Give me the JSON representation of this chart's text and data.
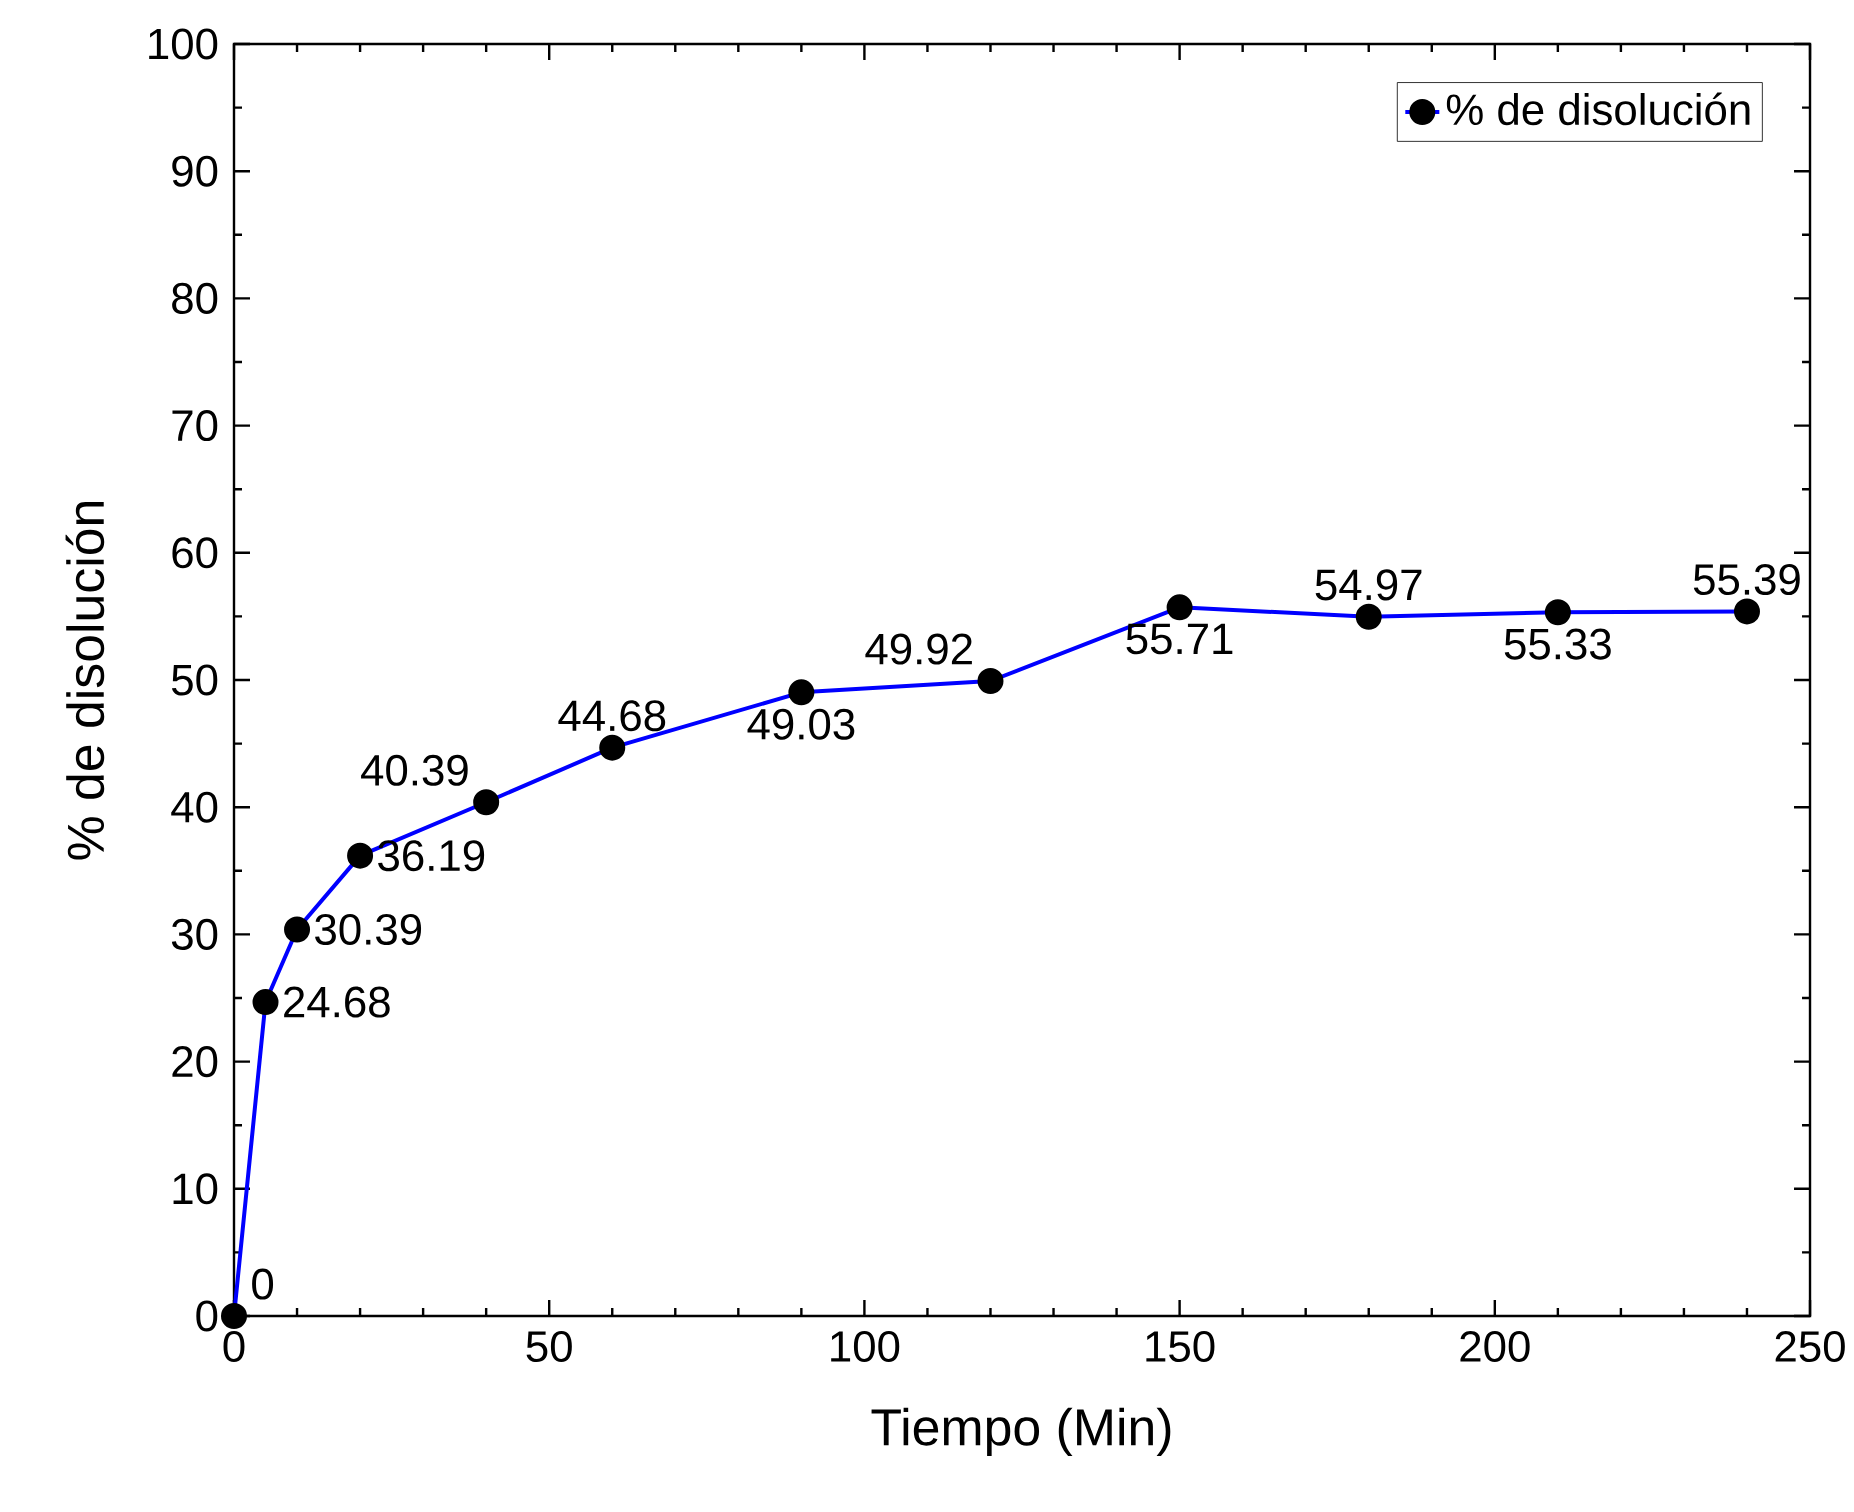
{
  "chart_data": {
    "type": "line",
    "xlabel": "Tiempo (Min)",
    "ylabel": "% de disolución",
    "x": [
      0,
      5,
      10,
      20,
      40,
      60,
      90,
      120,
      150,
      180,
      210,
      240
    ],
    "series": [
      {
        "name": "% de disolución",
        "color": "#0000ff",
        "values": [
          0,
          24.68,
          30.39,
          36.19,
          40.39,
          44.68,
          49.03,
          49.92,
          55.71,
          54.97,
          55.33,
          55.39
        ],
        "value_labels": [
          "0",
          "24.68",
          "30.39",
          "36.19",
          "40.39",
          "44.68",
          "49.03",
          "49.92",
          "55.71",
          "54.97",
          "55.33",
          "55.39"
        ]
      }
    ],
    "xlim": [
      0,
      250
    ],
    "xticks": [
      0,
      50,
      100,
      150,
      200,
      250
    ],
    "ylim": [
      0,
      100
    ],
    "yticks": [
      0,
      10,
      20,
      30,
      40,
      50,
      60,
      70,
      80,
      90,
      100
    ],
    "legend": "top right",
    "marker": "circle",
    "line_style": "solid",
    "grid": false
  }
}
